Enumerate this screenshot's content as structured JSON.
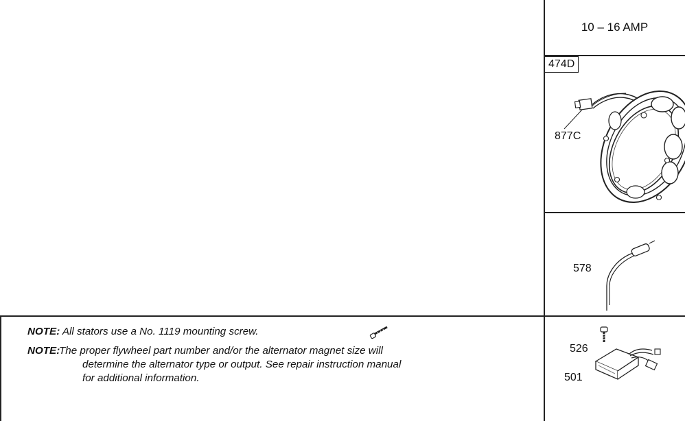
{
  "header": {
    "amp_range": "10 – 16 AMP"
  },
  "stator": {
    "group_code": "474D",
    "part_label": "877C"
  },
  "wire": {
    "part_label": "578"
  },
  "regulator": {
    "screw_label": "526",
    "regulator_label": "501"
  },
  "notes": [
    {
      "prefix": "NOTE:",
      "text": "All stators use a No. 1119  mounting screw."
    },
    {
      "prefix": "NOTE:",
      "text_lines": [
        "The proper flywheel part number and/or the alternator magnet size will",
        "determine the alternator type or output. See repair instruction manual",
        "for additional information."
      ]
    }
  ],
  "icons": {
    "screw": "mounting-screw-icon"
  }
}
